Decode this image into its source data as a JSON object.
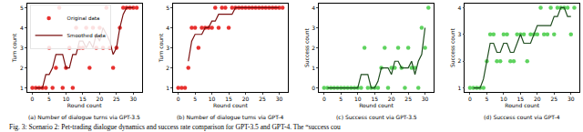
{
  "caption": "Fig. 3: Scenario 2: Pet-trading dialogue dynamics and success rate comparison for GPT-3.5 and GPT-4. The “success cou",
  "chart_data": [
    {
      "type": "scatter",
      "title": "(a) Number of dialogue turns via GPT-3.5",
      "x_label": "Round count",
      "y_label": "Turn count",
      "x": [
        0,
        1,
        2,
        3,
        4,
        5,
        6,
        7,
        8,
        9,
        10,
        11,
        12,
        13,
        14,
        15,
        16,
        17,
        18,
        19,
        20,
        21,
        22,
        23,
        24,
        25,
        26,
        27,
        28,
        29,
        30,
        31
      ],
      "series": [
        {
          "name": "Original data",
          "type": "scatter",
          "marker": "circle",
          "color": "#e8312f",
          "values": [
            1,
            1,
            1,
            1,
            1,
            3,
            1,
            2,
            5,
            1,
            2,
            3,
            1,
            4,
            3,
            3,
            4,
            2,
            4,
            3,
            4,
            3,
            5,
            3,
            2,
            3,
            4,
            5,
            5,
            5,
            5,
            5
          ]
        },
        {
          "name": "Smoothed data",
          "type": "line",
          "line_style": "solid",
          "color": "#7a1010",
          "values": [
            null,
            1,
            1,
            1,
            1.67,
            1.67,
            2,
            2.67,
            2.67,
            2.67,
            2,
            2,
            2.67,
            2.67,
            3.33,
            3.33,
            3,
            3.33,
            3,
            3.67,
            3.33,
            4,
            3.67,
            3.33,
            2.67,
            3,
            4,
            4.67,
            5,
            5,
            5,
            null
          ]
        }
      ],
      "xlim": [
        -1.5,
        32.5
      ],
      "xticks": [
        0,
        5,
        10,
        15,
        20,
        25,
        30
      ],
      "ylim": [
        0.8,
        5.2
      ],
      "yticks": [
        1,
        2,
        3,
        4,
        5
      ],
      "grid": false,
      "legend": "upper left"
    },
    {
      "type": "scatter",
      "title": "(b) Number of dialogue turns via GPT-4",
      "x_label": "Round count",
      "y_label": "Turn count",
      "x": [
        0,
        1,
        2,
        3,
        4,
        5,
        6,
        7,
        8,
        9,
        10,
        11,
        12,
        13,
        14,
        15,
        16,
        17,
        18,
        19,
        20,
        21,
        22,
        23,
        24,
        25,
        26,
        27,
        28,
        29,
        30,
        31
      ],
      "series": [
        {
          "name": "Original data",
          "type": "scatter",
          "marker": "circle",
          "color": "#e8312f",
          "values": [
            1,
            1,
            1,
            2,
            4,
            4,
            3,
            4,
            4,
            4,
            4,
            5,
            4,
            5,
            5,
            4,
            5,
            5,
            5,
            5,
            5,
            5,
            5,
            5,
            5,
            5,
            5,
            5,
            5,
            5,
            5,
            5
          ]
        },
        {
          "name": "Smoothed data",
          "type": "line",
          "line_style": "solid",
          "color": "#7a1010",
          "values": [
            null,
            null,
            null,
            2.33,
            3.33,
            3.67,
            3.67,
            3.67,
            4,
            4,
            4.33,
            4.33,
            4.67,
            4.67,
            4.67,
            4.67,
            4.67,
            5,
            5,
            5,
            5,
            5,
            5,
            5,
            5,
            5,
            5,
            5,
            5,
            5,
            5,
            null
          ]
        }
      ],
      "xlim": [
        -1.5,
        32.5
      ],
      "xticks": [
        0,
        5,
        10,
        15,
        20,
        25,
        30
      ],
      "ylim": [
        0.8,
        5.2
      ],
      "yticks": [
        1,
        2,
        3,
        4,
        5
      ],
      "grid": false
    },
    {
      "type": "scatter",
      "title": "(c) Success count via GPT-3.5",
      "x_label": "Round count",
      "y_label": "Success count",
      "x": [
        0,
        1,
        2,
        3,
        4,
        5,
        6,
        7,
        8,
        9,
        10,
        11,
        12,
        13,
        14,
        15,
        16,
        17,
        18,
        19,
        20,
        21,
        22,
        23,
        24,
        25,
        26,
        27,
        28,
        29,
        30,
        31
      ],
      "series": [
        {
          "name": "Original data",
          "type": "scatter",
          "marker": "circle",
          "color": "#5fd35f",
          "values": [
            0,
            0,
            0,
            0,
            0,
            0,
            0,
            0,
            0,
            0,
            0,
            0,
            2,
            0,
            0,
            0,
            0,
            1,
            2,
            0,
            1,
            1,
            2,
            1,
            0,
            2,
            1,
            1,
            0,
            3,
            2,
            4
          ]
        },
        {
          "name": "Smoothed data",
          "type": "line",
          "line_style": "solid",
          "color": "#1f4d1f",
          "values": [
            null,
            0,
            0,
            0,
            0,
            0,
            0,
            0,
            0,
            0,
            0,
            0.67,
            0.67,
            0.67,
            0,
            0,
            0.33,
            1,
            1,
            1,
            0.67,
            1.33,
            1.33,
            1,
            1,
            1,
            1.33,
            0.67,
            1.33,
            1.67,
            3,
            null
          ]
        }
      ],
      "xlim": [
        -1.5,
        32.5
      ],
      "xticks": [
        0,
        5,
        10,
        15,
        20,
        25,
        30
      ],
      "ylim": [
        -0.2,
        4.2
      ],
      "yticks": [
        0,
        1,
        2,
        3,
        4
      ],
      "grid": false
    },
    {
      "type": "scatter",
      "title": "(d) Success count via GPT-4",
      "x_label": "Round count",
      "y_label": "Success count",
      "x": [
        0,
        1,
        2,
        3,
        4,
        5,
        6,
        7,
        8,
        9,
        10,
        11,
        12,
        13,
        14,
        15,
        16,
        17,
        18,
        19,
        20,
        21,
        22,
        23,
        24,
        25,
        26,
        27,
        28,
        29,
        30,
        31
      ],
      "series": [
        {
          "name": "Original data",
          "type": "scatter",
          "marker": "circle",
          "color": "#5fd35f",
          "values": [
            1,
            1,
            1,
            1,
            1,
            2,
            3,
            3,
            2,
            2,
            3,
            3,
            2,
            2,
            3,
            3,
            3,
            2,
            3,
            3,
            3,
            4,
            3,
            3,
            4,
            3,
            4,
            4,
            4,
            4,
            3,
            4
          ]
        },
        {
          "name": "Smoothed data",
          "type": "line",
          "line_style": "solid",
          "color": "#1f4d1f",
          "values": [
            null,
            1,
            1,
            1,
            1.33,
            2,
            2.67,
            2.67,
            2.33,
            2.33,
            2.67,
            2.67,
            2.33,
            2.33,
            2.67,
            3,
            2.67,
            2.67,
            2.67,
            3,
            3.33,
            3.33,
            3.33,
            3.33,
            3.33,
            3.67,
            3.67,
            4,
            4,
            3.67,
            3.67,
            null
          ]
        }
      ],
      "xlim": [
        -1.5,
        32.5
      ],
      "xticks": [
        0,
        5,
        10,
        15,
        20,
        25,
        30
      ],
      "ylim": [
        0.85,
        4.15
      ],
      "yticks": [
        1,
        2,
        3,
        4
      ],
      "grid": false
    }
  ]
}
